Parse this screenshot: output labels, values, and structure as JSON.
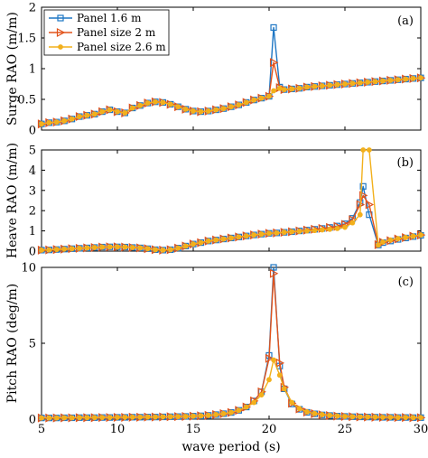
{
  "colors": {
    "panel_1_6": "#1f77c4",
    "panel_2": "#e2531b",
    "panel_2_6": "#f2b01c",
    "axis": "#000000",
    "background": "#ffffff"
  },
  "legend": {
    "placement": "top-left of panel (a)",
    "items": [
      {
        "label": "Panel 1.6 m",
        "marker": "square"
      },
      {
        "label": "Panel size 2 m",
        "marker": "triangle-right"
      },
      {
        "label": "Panel size 2.6 m",
        "marker": "circle"
      }
    ]
  },
  "xlabel": "wave period (s)",
  "chart_data": [
    {
      "type": "line",
      "panel_tag": "(a)",
      "ylabel": "Surge RAO (m/m)",
      "xlim": [
        5,
        30
      ],
      "ylim": [
        0,
        2
      ],
      "xticks": [
        "5",
        "10",
        "15",
        "20",
        "25",
        "30"
      ],
      "yticks": [
        "0",
        "0.5",
        "1",
        "1.5",
        "2"
      ],
      "x": [
        5.0,
        5.5,
        6.0,
        6.5,
        7.0,
        7.5,
        8.0,
        8.5,
        9.0,
        9.5,
        10.0,
        10.5,
        11.0,
        11.5,
        12.0,
        12.5,
        13.0,
        13.5,
        14.0,
        14.5,
        15.0,
        15.5,
        16.0,
        16.5,
        17.0,
        17.5,
        18.0,
        18.5,
        19.0,
        19.5,
        20.0,
        20.3,
        20.7,
        21.0,
        21.5,
        22.0,
        22.5,
        23.0,
        23.5,
        24.0,
        24.5,
        25.0,
        25.5,
        26.0,
        26.5,
        27.0,
        27.5,
        28.0,
        28.5,
        29.0,
        29.5,
        30.0
      ],
      "series": [
        {
          "name": "Panel 1.6 m",
          "values": [
            0.1,
            0.12,
            0.13,
            0.15,
            0.18,
            0.22,
            0.24,
            0.26,
            0.3,
            0.33,
            0.3,
            0.28,
            0.36,
            0.4,
            0.44,
            0.46,
            0.45,
            0.42,
            0.38,
            0.34,
            0.31,
            0.3,
            0.31,
            0.33,
            0.35,
            0.38,
            0.41,
            0.45,
            0.49,
            0.52,
            0.55,
            1.67,
            0.7,
            0.66,
            0.67,
            0.68,
            0.7,
            0.71,
            0.72,
            0.73,
            0.74,
            0.75,
            0.76,
            0.77,
            0.78,
            0.79,
            0.8,
            0.81,
            0.82,
            0.83,
            0.84,
            0.85
          ]
        },
        {
          "name": "Panel size 2 m",
          "values": [
            0.1,
            0.12,
            0.13,
            0.15,
            0.18,
            0.22,
            0.24,
            0.26,
            0.3,
            0.33,
            0.3,
            0.28,
            0.36,
            0.4,
            0.44,
            0.46,
            0.45,
            0.42,
            0.38,
            0.34,
            0.31,
            0.3,
            0.31,
            0.33,
            0.35,
            0.38,
            0.41,
            0.45,
            0.49,
            0.52,
            0.55,
            1.1,
            0.69,
            0.66,
            0.67,
            0.68,
            0.7,
            0.71,
            0.72,
            0.73,
            0.74,
            0.75,
            0.76,
            0.77,
            0.78,
            0.79,
            0.8,
            0.81,
            0.82,
            0.83,
            0.84,
            0.85
          ]
        },
        {
          "name": "Panel size 2.6 m",
          "values": [
            0.1,
            0.12,
            0.13,
            0.15,
            0.18,
            0.22,
            0.24,
            0.26,
            0.3,
            0.33,
            0.3,
            0.28,
            0.36,
            0.4,
            0.44,
            0.46,
            0.45,
            0.42,
            0.38,
            0.34,
            0.31,
            0.3,
            0.31,
            0.33,
            0.35,
            0.38,
            0.41,
            0.45,
            0.49,
            0.52,
            0.55,
            0.64,
            0.68,
            0.66,
            0.67,
            0.68,
            0.7,
            0.71,
            0.72,
            0.73,
            0.74,
            0.75,
            0.76,
            0.77,
            0.78,
            0.79,
            0.8,
            0.81,
            0.82,
            0.83,
            0.84,
            0.85
          ]
        }
      ]
    },
    {
      "type": "line",
      "panel_tag": "(b)",
      "ylabel": "Heave RAO (m/m)",
      "xlim": [
        5,
        30
      ],
      "ylim": [
        0,
        5
      ],
      "xticks": [
        "5",
        "10",
        "15",
        "20",
        "25",
        "30"
      ],
      "yticks": [
        "0",
        "1",
        "2",
        "3",
        "4",
        "5"
      ],
      "x": [
        5.0,
        5.5,
        6.0,
        6.5,
        7.0,
        7.5,
        8.0,
        8.5,
        9.0,
        9.5,
        10.0,
        10.5,
        11.0,
        11.5,
        12.0,
        12.5,
        13.0,
        13.5,
        14.0,
        14.5,
        15.0,
        15.5,
        16.0,
        16.5,
        17.0,
        17.5,
        18.0,
        18.5,
        19.0,
        19.5,
        20.0,
        20.5,
        21.0,
        21.5,
        22.0,
        22.5,
        23.0,
        23.5,
        24.0,
        24.5,
        25.0,
        25.5,
        26.0,
        26.2,
        26.6,
        27.2,
        27.5,
        28.0,
        28.5,
        29.0,
        29.5,
        30.0
      ],
      "series": [
        {
          "name": "Panel 1.6 m",
          "values": [
            0.05,
            0.06,
            0.08,
            0.1,
            0.12,
            0.14,
            0.16,
            0.18,
            0.2,
            0.21,
            0.21,
            0.2,
            0.18,
            0.16,
            0.12,
            0.07,
            0.05,
            0.07,
            0.15,
            0.25,
            0.35,
            0.42,
            0.5,
            0.55,
            0.6,
            0.65,
            0.7,
            0.75,
            0.8,
            0.84,
            0.88,
            0.9,
            0.93,
            0.96,
            1.0,
            1.04,
            1.08,
            1.12,
            1.17,
            1.24,
            1.35,
            1.62,
            2.4,
            3.2,
            1.8,
            0.3,
            0.42,
            0.5,
            0.58,
            0.65,
            0.72,
            0.78
          ]
        },
        {
          "name": "Panel size 2 m",
          "values": [
            0.05,
            0.06,
            0.08,
            0.1,
            0.12,
            0.14,
            0.16,
            0.18,
            0.2,
            0.21,
            0.21,
            0.2,
            0.18,
            0.16,
            0.12,
            0.07,
            0.05,
            0.07,
            0.15,
            0.25,
            0.35,
            0.42,
            0.5,
            0.55,
            0.6,
            0.65,
            0.7,
            0.75,
            0.8,
            0.84,
            0.88,
            0.9,
            0.93,
            0.96,
            1.0,
            1.04,
            1.08,
            1.12,
            1.17,
            1.22,
            1.32,
            1.55,
            2.3,
            2.75,
            2.3,
            0.32,
            0.44,
            0.52,
            0.6,
            0.67,
            0.74,
            0.8
          ]
        },
        {
          "name": "Panel size 2.6 m",
          "values": [
            0.05,
            0.06,
            0.08,
            0.1,
            0.12,
            0.14,
            0.16,
            0.18,
            0.2,
            0.21,
            0.21,
            0.2,
            0.18,
            0.16,
            0.12,
            0.07,
            0.05,
            0.07,
            0.15,
            0.25,
            0.35,
            0.42,
            0.5,
            0.55,
            0.6,
            0.65,
            0.7,
            0.75,
            0.8,
            0.84,
            0.88,
            0.9,
            0.93,
            0.96,
            0.98,
            1.0,
            1.02,
            1.05,
            1.08,
            1.12,
            1.18,
            1.4,
            1.8,
            5.0,
            5.0,
            0.3,
            0.45,
            0.55,
            0.62,
            0.68,
            0.74,
            0.8
          ]
        }
      ]
    },
    {
      "type": "line",
      "panel_tag": "(c)",
      "ylabel": "Pitch RAO (deg/m)",
      "xlim": [
        5,
        30
      ],
      "ylim": [
        0,
        10
      ],
      "xticks": [
        "5",
        "10",
        "15",
        "20",
        "25",
        "30"
      ],
      "yticks": [
        "0",
        "5",
        "10"
      ],
      "x": [
        5.0,
        5.5,
        6.0,
        6.5,
        7.0,
        7.5,
        8.0,
        8.5,
        9.0,
        9.5,
        10.0,
        10.5,
        11.0,
        11.5,
        12.0,
        12.5,
        13.0,
        13.5,
        14.0,
        14.5,
        15.0,
        15.5,
        16.0,
        16.5,
        17.0,
        17.5,
        18.0,
        18.5,
        19.0,
        19.5,
        20.0,
        20.3,
        20.7,
        21.0,
        21.5,
        22.0,
        22.5,
        23.0,
        23.5,
        24.0,
        24.5,
        25.0,
        25.5,
        26.0,
        26.5,
        27.0,
        27.5,
        28.0,
        28.5,
        29.0,
        29.5,
        30.0
      ],
      "series": [
        {
          "name": "Panel 1.6 m",
          "values": [
            0.08,
            0.08,
            0.08,
            0.09,
            0.09,
            0.1,
            0.1,
            0.1,
            0.11,
            0.11,
            0.12,
            0.12,
            0.13,
            0.13,
            0.14,
            0.14,
            0.15,
            0.16,
            0.17,
            0.18,
            0.2,
            0.22,
            0.25,
            0.3,
            0.36,
            0.44,
            0.58,
            0.8,
            1.2,
            1.8,
            4.2,
            10.0,
            3.5,
            2.0,
            1.0,
            0.65,
            0.45,
            0.35,
            0.28,
            0.24,
            0.2,
            0.18,
            0.16,
            0.15,
            0.14,
            0.13,
            0.12,
            0.12,
            0.11,
            0.11,
            0.1,
            0.1
          ]
        },
        {
          "name": "Panel size 2 m",
          "values": [
            0.08,
            0.08,
            0.08,
            0.09,
            0.09,
            0.1,
            0.1,
            0.1,
            0.11,
            0.11,
            0.12,
            0.12,
            0.13,
            0.13,
            0.14,
            0.14,
            0.15,
            0.16,
            0.17,
            0.18,
            0.2,
            0.22,
            0.25,
            0.3,
            0.36,
            0.44,
            0.58,
            0.8,
            1.2,
            1.8,
            4.0,
            9.6,
            3.7,
            2.1,
            1.05,
            0.68,
            0.47,
            0.36,
            0.29,
            0.24,
            0.2,
            0.18,
            0.16,
            0.15,
            0.14,
            0.13,
            0.12,
            0.12,
            0.11,
            0.11,
            0.1,
            0.1
          ]
        },
        {
          "name": "Panel size 2.6 m",
          "values": [
            0.08,
            0.08,
            0.08,
            0.09,
            0.09,
            0.1,
            0.1,
            0.1,
            0.11,
            0.11,
            0.12,
            0.12,
            0.13,
            0.13,
            0.14,
            0.14,
            0.15,
            0.16,
            0.17,
            0.18,
            0.2,
            0.22,
            0.25,
            0.3,
            0.36,
            0.44,
            0.58,
            0.8,
            1.1,
            1.6,
            2.6,
            3.9,
            2.9,
            2.0,
            1.1,
            0.7,
            0.48,
            0.37,
            0.3,
            0.25,
            0.21,
            0.18,
            0.16,
            0.15,
            0.14,
            0.13,
            0.12,
            0.12,
            0.11,
            0.11,
            0.1,
            0.1
          ]
        }
      ]
    }
  ]
}
